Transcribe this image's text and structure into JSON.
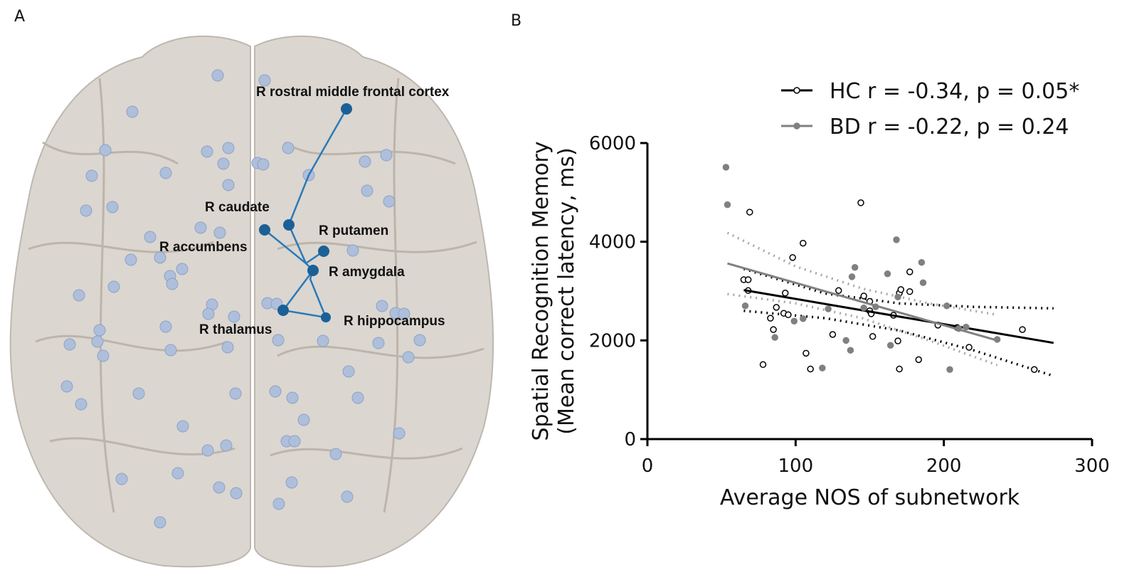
{
  "panel_a": {
    "label": "A",
    "regions": [
      "R rostral middle frontal cortex",
      "R caudate",
      "R putamen",
      "R accumbens",
      "R amygdala",
      "R thalamus",
      "R hippocampus"
    ]
  },
  "chart_data": {
    "type": "scatter",
    "panel_label": "B",
    "ylabel": [
      "Spatial Recognition Memory",
      "(Mean correct latency, ms)"
    ],
    "xlabel": "Average NOS of subnetwork",
    "xlim": [
      0,
      300
    ],
    "xticks": [
      0,
      100,
      200,
      300
    ],
    "ylim": [
      0,
      6000
    ],
    "yticks": [
      0,
      2000,
      4000,
      6000
    ],
    "series": [
      {
        "name": "HC r = -0.34, p = 0.05*",
        "color": "#000000",
        "marker": "open",
        "x": [
          69,
          144,
          105,
          98,
          65,
          68,
          68,
          93,
          92,
          95,
          83,
          87,
          85,
          125,
          129,
          146,
          150,
          150,
          151,
          152,
          166,
          170,
          171,
          169,
          177,
          177,
          183,
          107,
          78,
          110,
          170,
          196,
          209,
          217,
          253,
          261
        ],
        "values": [
          4600,
          4790,
          3970,
          3680,
          3230,
          3230,
          3010,
          2960,
          2550,
          2520,
          2450,
          2670,
          2220,
          2120,
          3010,
          2900,
          2790,
          2600,
          2540,
          2080,
          2510,
          2960,
          3030,
          1990,
          3390,
          2990,
          1610,
          1740,
          1510,
          1420,
          1420,
          2310,
          2260,
          1860,
          2220,
          1410
        ],
        "fit": {
          "x": [
            65,
            274
          ],
          "values": [
            3020,
            1950
          ]
        },
        "ci_upper": {
          "x": [
            65,
            120,
            170,
            220,
            274
          ],
          "values": [
            3450,
            2950,
            2750,
            2680,
            2650
          ]
        },
        "ci_lower": {
          "x": [
            65,
            120,
            170,
            220,
            274
          ],
          "values": [
            2600,
            2450,
            2200,
            1800,
            1280
          ]
        }
      },
      {
        "name": "BD r = -0.22, p = 0.24",
        "color": "#808080",
        "marker": "filled",
        "x": [
          53,
          54,
          168,
          185,
          162,
          138,
          140,
          146,
          169,
          186,
          66,
          86,
          99,
          105,
          137,
          134,
          118,
          164,
          202,
          210,
          215,
          204,
          236,
          154,
          122
        ],
        "values": [
          5510,
          4750,
          4040,
          3580,
          3350,
          3290,
          3480,
          2660,
          2880,
          3170,
          2700,
          2060,
          2390,
          2440,
          1800,
          2000,
          1440,
          1900,
          2700,
          2240,
          2270,
          1410,
          2020,
          2680,
          2640
        ],
        "fit": {
          "x": [
            54,
            236
          ],
          "values": [
            3560,
            2000
          ]
        },
        "ci_upper": {
          "x": [
            54,
            100,
            145,
            190,
            236
          ],
          "values": [
            4180,
            3500,
            3050,
            2750,
            2520
          ]
        },
        "ci_lower": {
          "x": [
            54,
            100,
            145,
            190,
            236
          ],
          "values": [
            2940,
            2750,
            2450,
            2000,
            1500
          ]
        }
      }
    ]
  }
}
